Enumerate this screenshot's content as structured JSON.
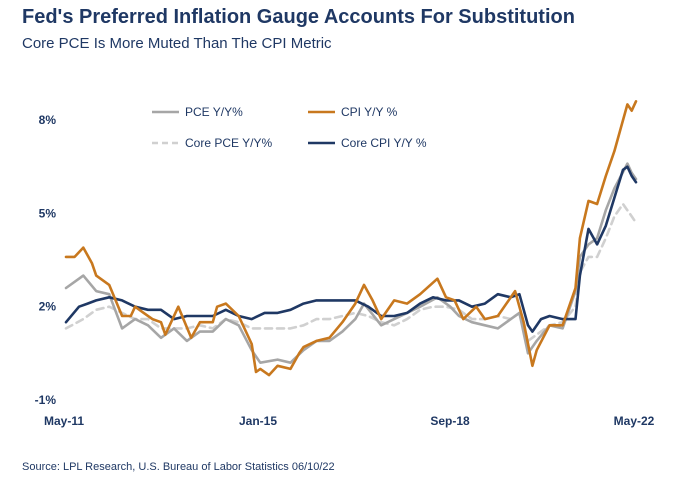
{
  "title": "Fed's Preferred Inflation Gauge Accounts For Substitution",
  "subtitle": "Core PCE Is More Muted Than The CPI Metric",
  "source": "Source: LPL Research, U.S. Bureau of Labor Statistics 06/10/22",
  "chart_data": {
    "type": "line",
    "title": "Fed's Preferred Inflation Gauge Accounts For Substitution",
    "subtitle": "Core PCE Is More Muted Than The CPI Metric",
    "xlabel": "",
    "ylabel": "",
    "x_range": [
      "2011-05",
      "2022-05"
    ],
    "x_ticks": [
      "May-11",
      "Jan-15",
      "Sep-18",
      "May-22"
    ],
    "ylim": [
      -1,
      9
    ],
    "y_ticks": [
      -1,
      2,
      5,
      8
    ],
    "y_tick_labels": [
      "-1%",
      "2%",
      "5%",
      "8%"
    ],
    "grid": false,
    "legend_position": "top-left inside plot, two columns",
    "series": [
      {
        "name": "PCE Y/Y%",
        "color": "#a6a6a6",
        "style": "solid",
        "points": [
          [
            "2011-05",
            2.6
          ],
          [
            "2011-08",
            2.9
          ],
          [
            "2011-09",
            3.0
          ],
          [
            "2011-12",
            2.5
          ],
          [
            "2012-03",
            2.4
          ],
          [
            "2012-06",
            1.3
          ],
          [
            "2012-09",
            1.6
          ],
          [
            "2012-12",
            1.4
          ],
          [
            "2013-03",
            1.0
          ],
          [
            "2013-06",
            1.3
          ],
          [
            "2013-09",
            0.9
          ],
          [
            "2013-12",
            1.2
          ],
          [
            "2014-03",
            1.2
          ],
          [
            "2014-06",
            1.6
          ],
          [
            "2014-09",
            1.4
          ],
          [
            "2014-12",
            0.6
          ],
          [
            "2015-02",
            0.2
          ],
          [
            "2015-06",
            0.3
          ],
          [
            "2015-09",
            0.2
          ],
          [
            "2015-12",
            0.6
          ],
          [
            "2016-03",
            0.9
          ],
          [
            "2016-06",
            0.9
          ],
          [
            "2016-09",
            1.2
          ],
          [
            "2016-12",
            1.6
          ],
          [
            "2017-02",
            2.1
          ],
          [
            "2017-06",
            1.4
          ],
          [
            "2017-09",
            1.6
          ],
          [
            "2017-12",
            1.8
          ],
          [
            "2018-03",
            2.0
          ],
          [
            "2018-07",
            2.3
          ],
          [
            "2018-10",
            2.0
          ],
          [
            "2018-12",
            1.7
          ],
          [
            "2019-03",
            1.5
          ],
          [
            "2019-06",
            1.4
          ],
          [
            "2019-09",
            1.3
          ],
          [
            "2019-12",
            1.6
          ],
          [
            "2020-02",
            1.8
          ],
          [
            "2020-04",
            0.5
          ],
          [
            "2020-06",
            0.9
          ],
          [
            "2020-09",
            1.4
          ],
          [
            "2020-12",
            1.3
          ],
          [
            "2021-03",
            2.5
          ],
          [
            "2021-04",
            3.6
          ],
          [
            "2021-06",
            4.0
          ],
          [
            "2021-08",
            4.2
          ],
          [
            "2021-10",
            5.1
          ],
          [
            "2021-12",
            5.8
          ],
          [
            "2022-03",
            6.6
          ],
          [
            "2022-04",
            6.3
          ],
          [
            "2022-05",
            6.1
          ]
        ]
      },
      {
        "name": "CPI Y/Y %",
        "color": "#c8781e",
        "style": "solid",
        "points": [
          [
            "2011-05",
            3.6
          ],
          [
            "2011-07",
            3.6
          ],
          [
            "2011-09",
            3.9
          ],
          [
            "2011-11",
            3.4
          ],
          [
            "2011-12",
            3.0
          ],
          [
            "2012-03",
            2.7
          ],
          [
            "2012-06",
            1.7
          ],
          [
            "2012-08",
            1.7
          ],
          [
            "2012-09",
            2.0
          ],
          [
            "2012-11",
            1.8
          ],
          [
            "2013-01",
            1.6
          ],
          [
            "2013-03",
            1.5
          ],
          [
            "2013-04",
            1.1
          ],
          [
            "2013-07",
            2.0
          ],
          [
            "2013-10",
            1.0
          ],
          [
            "2013-12",
            1.5
          ],
          [
            "2014-03",
            1.5
          ],
          [
            "2014-04",
            2.0
          ],
          [
            "2014-06",
            2.1
          ],
          [
            "2014-09",
            1.7
          ],
          [
            "2014-12",
            0.8
          ],
          [
            "2015-01",
            -0.1
          ],
          [
            "2015-02",
            0.0
          ],
          [
            "2015-04",
            -0.2
          ],
          [
            "2015-06",
            0.1
          ],
          [
            "2015-09",
            0.0
          ],
          [
            "2015-11",
            0.5
          ],
          [
            "2015-12",
            0.7
          ],
          [
            "2016-03",
            0.9
          ],
          [
            "2016-06",
            1.0
          ],
          [
            "2016-09",
            1.5
          ],
          [
            "2016-12",
            2.1
          ],
          [
            "2017-02",
            2.7
          ],
          [
            "2017-04",
            2.2
          ],
          [
            "2017-06",
            1.6
          ],
          [
            "2017-09",
            2.2
          ],
          [
            "2017-12",
            2.1
          ],
          [
            "2018-03",
            2.4
          ],
          [
            "2018-07",
            2.9
          ],
          [
            "2018-09",
            2.3
          ],
          [
            "2018-11",
            2.2
          ],
          [
            "2019-01",
            1.6
          ],
          [
            "2019-04",
            2.0
          ],
          [
            "2019-06",
            1.6
          ],
          [
            "2019-09",
            1.7
          ],
          [
            "2019-12",
            2.3
          ],
          [
            "2020-01",
            2.5
          ],
          [
            "2020-03",
            1.5
          ],
          [
            "2020-05",
            0.1
          ],
          [
            "2020-06",
            0.6
          ],
          [
            "2020-09",
            1.4
          ],
          [
            "2020-12",
            1.4
          ],
          [
            "2021-03",
            2.6
          ],
          [
            "2021-04",
            4.2
          ],
          [
            "2021-06",
            5.4
          ],
          [
            "2021-08",
            5.3
          ],
          [
            "2021-10",
            6.2
          ],
          [
            "2021-12",
            7.0
          ],
          [
            "2022-01",
            7.5
          ],
          [
            "2022-03",
            8.5
          ],
          [
            "2022-04",
            8.3
          ],
          [
            "2022-05",
            8.6
          ]
        ]
      },
      {
        "name": "Core PCE Y/Y%",
        "color": "#d0d0d0",
        "style": "dashed",
        "points": [
          [
            "2011-05",
            1.3
          ],
          [
            "2011-09",
            1.6
          ],
          [
            "2011-12",
            1.9
          ],
          [
            "2012-03",
            2.0
          ],
          [
            "2012-06",
            1.8
          ],
          [
            "2012-09",
            1.6
          ],
          [
            "2012-12",
            1.6
          ],
          [
            "2013-03",
            1.3
          ],
          [
            "2013-06",
            1.3
          ],
          [
            "2013-09",
            1.3
          ],
          [
            "2013-12",
            1.4
          ],
          [
            "2014-03",
            1.3
          ],
          [
            "2014-06",
            1.6
          ],
          [
            "2014-09",
            1.5
          ],
          [
            "2014-12",
            1.3
          ],
          [
            "2015-03",
            1.3
          ],
          [
            "2015-06",
            1.3
          ],
          [
            "2015-09",
            1.3
          ],
          [
            "2015-12",
            1.4
          ],
          [
            "2016-03",
            1.6
          ],
          [
            "2016-06",
            1.6
          ],
          [
            "2016-09",
            1.7
          ],
          [
            "2016-12",
            1.8
          ],
          [
            "2017-03",
            1.7
          ],
          [
            "2017-06",
            1.5
          ],
          [
            "2017-09",
            1.4
          ],
          [
            "2017-12",
            1.6
          ],
          [
            "2018-03",
            1.9
          ],
          [
            "2018-06",
            2.0
          ],
          [
            "2018-09",
            2.0
          ],
          [
            "2018-12",
            1.9
          ],
          [
            "2019-03",
            1.6
          ],
          [
            "2019-06",
            1.6
          ],
          [
            "2019-09",
            1.7
          ],
          [
            "2019-12",
            1.6
          ],
          [
            "2020-02",
            1.8
          ],
          [
            "2020-04",
            0.9
          ],
          [
            "2020-06",
            1.1
          ],
          [
            "2020-09",
            1.4
          ],
          [
            "2020-12",
            1.5
          ],
          [
            "2021-03",
            2.0
          ],
          [
            "2021-04",
            3.1
          ],
          [
            "2021-06",
            3.6
          ],
          [
            "2021-08",
            3.6
          ],
          [
            "2021-10",
            4.2
          ],
          [
            "2021-12",
            4.9
          ],
          [
            "2022-02",
            5.3
          ],
          [
            "2022-04",
            4.9
          ],
          [
            "2022-05",
            4.7
          ]
        ]
      },
      {
        "name": "Core CPI Y/Y %",
        "color": "#1f3864",
        "style": "solid",
        "points": [
          [
            "2011-05",
            1.5
          ],
          [
            "2011-08",
            2.0
          ],
          [
            "2011-10",
            2.1
          ],
          [
            "2011-12",
            2.2
          ],
          [
            "2012-03",
            2.3
          ],
          [
            "2012-06",
            2.2
          ],
          [
            "2012-09",
            2.0
          ],
          [
            "2012-12",
            1.9
          ],
          [
            "2013-03",
            1.9
          ],
          [
            "2013-06",
            1.6
          ],
          [
            "2013-09",
            1.7
          ],
          [
            "2013-12",
            1.7
          ],
          [
            "2014-03",
            1.7
          ],
          [
            "2014-06",
            1.9
          ],
          [
            "2014-09",
            1.7
          ],
          [
            "2014-12",
            1.6
          ],
          [
            "2015-03",
            1.8
          ],
          [
            "2015-06",
            1.8
          ],
          [
            "2015-09",
            1.9
          ],
          [
            "2015-12",
            2.1
          ],
          [
            "2016-03",
            2.2
          ],
          [
            "2016-06",
            2.2
          ],
          [
            "2016-09",
            2.2
          ],
          [
            "2016-12",
            2.2
          ],
          [
            "2017-03",
            2.0
          ],
          [
            "2017-06",
            1.7
          ],
          [
            "2017-09",
            1.7
          ],
          [
            "2017-12",
            1.8
          ],
          [
            "2018-03",
            2.1
          ],
          [
            "2018-06",
            2.3
          ],
          [
            "2018-09",
            2.2
          ],
          [
            "2018-12",
            2.2
          ],
          [
            "2019-03",
            2.0
          ],
          [
            "2019-06",
            2.1
          ],
          [
            "2019-09",
            2.4
          ],
          [
            "2019-12",
            2.3
          ],
          [
            "2020-02",
            2.4
          ],
          [
            "2020-04",
            1.4
          ],
          [
            "2020-05",
            1.2
          ],
          [
            "2020-07",
            1.6
          ],
          [
            "2020-09",
            1.7
          ],
          [
            "2020-12",
            1.6
          ],
          [
            "2021-03",
            1.6
          ],
          [
            "2021-04",
            3.0
          ],
          [
            "2021-06",
            4.5
          ],
          [
            "2021-08",
            4.0
          ],
          [
            "2021-10",
            4.6
          ],
          [
            "2021-12",
            5.5
          ],
          [
            "2022-02",
            6.4
          ],
          [
            "2022-03",
            6.5
          ],
          [
            "2022-04",
            6.2
          ],
          [
            "2022-05",
            6.0
          ]
        ]
      }
    ]
  }
}
